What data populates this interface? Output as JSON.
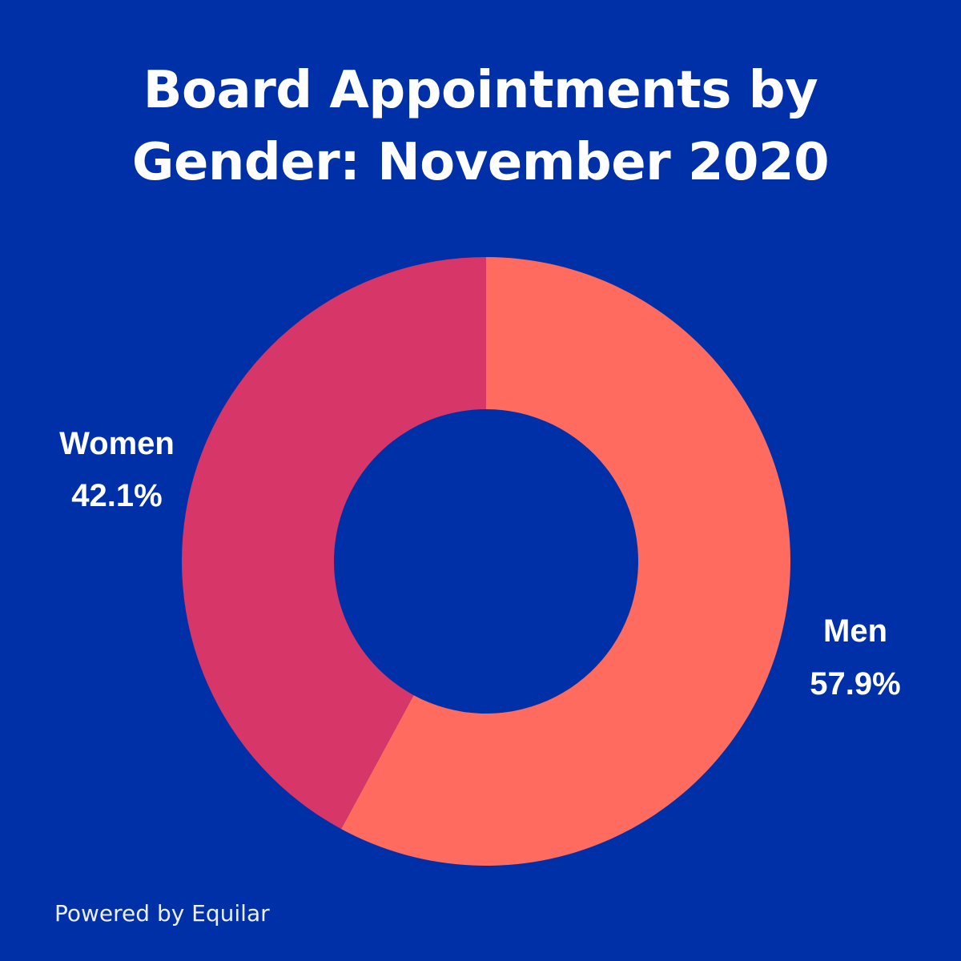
{
  "background_color": "#0030a8",
  "chart_data": {
    "type": "pie",
    "variant": "donut",
    "title": "Board Appointments by Gender: November 2020",
    "title_lines": [
      "Board Appointments by",
      "Gender: November 2020"
    ],
    "slices": [
      {
        "label": "Men",
        "value": 57.9,
        "value_label": "57.9%",
        "color": "#ff6b5e"
      },
      {
        "label": "Women",
        "value": 42.1,
        "value_label": "42.1%",
        "color": "#d63668"
      }
    ]
  },
  "footer": {
    "credit": "Powered by Equilar"
  }
}
